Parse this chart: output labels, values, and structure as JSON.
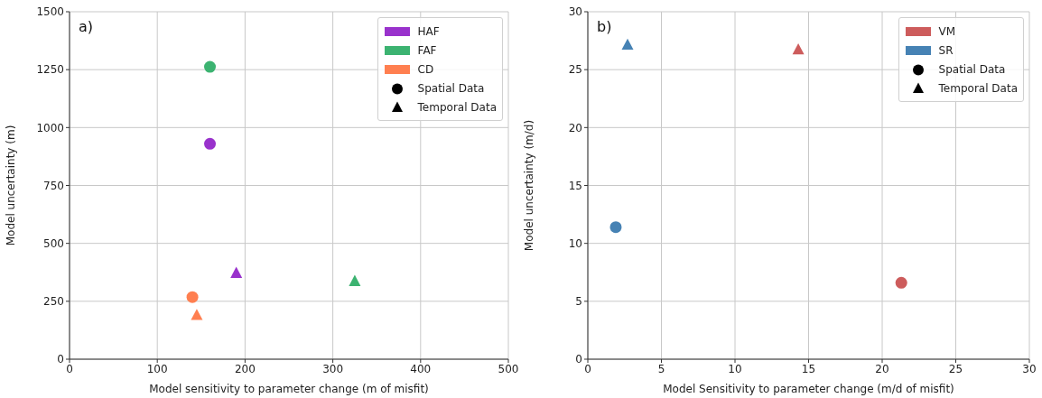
{
  "chart_data": [
    {
      "type": "scatter",
      "title": "a)",
      "xlabel": "Model sensitivity to parameter change (m of misfit)",
      "ylabel": "Model uncertainty (m)",
      "xlim": [
        0,
        500
      ],
      "xticks": [
        0,
        100,
        200,
        300,
        400,
        500
      ],
      "ylim": [
        0,
        1500
      ],
      "yticks": [
        0,
        250,
        500,
        750,
        1000,
        1250,
        1500
      ],
      "grid": true,
      "legend": "top right",
      "series": [
        {
          "name": "HAF",
          "color": "#9932cc",
          "x": [
            160,
            190
          ],
          "values": [
            930,
            370
          ],
          "marker": [
            "circle",
            "triangle"
          ]
        },
        {
          "name": "FAF",
          "color": "#3cb371",
          "x": [
            160,
            325
          ],
          "values": [
            1262,
            335
          ],
          "marker": [
            "circle",
            "triangle"
          ]
        },
        {
          "name": "CD",
          "color": "#ff7f50",
          "x": [
            140,
            145
          ],
          "values": [
            268,
            188
          ],
          "marker": [
            "circle",
            "triangle"
          ]
        },
        {
          "name": "Spatial Data",
          "color": "#000000",
          "marker": "circle"
        },
        {
          "name": "Temporal Data",
          "color": "#000000",
          "marker": "triangle"
        }
      ]
    },
    {
      "type": "scatter",
      "title": "b)",
      "xlabel": "Model Sensitivity to parameter change (m/d of misfit)",
      "ylabel": "Model uncertainty (m/d)",
      "xlim": [
        0,
        30
      ],
      "xticks": [
        0,
        5,
        10,
        15,
        20,
        25,
        30
      ],
      "ylim": [
        0,
        30
      ],
      "yticks": [
        0,
        5,
        10,
        15,
        20,
        25,
        30
      ],
      "grid": true,
      "legend": "top right",
      "series": [
        {
          "name": "VM",
          "color": "#cd5c5c",
          "x": [
            14.3,
            21.3
          ],
          "values": [
            26.7,
            6.6
          ],
          "marker": [
            "triangle",
            "circle"
          ]
        },
        {
          "name": "SR",
          "color": "#4682b4",
          "x": [
            2.7,
            1.9
          ],
          "values": [
            27.1,
            11.4
          ],
          "marker": [
            "triangle",
            "circle"
          ]
        },
        {
          "name": "Spatial Data",
          "color": "#000000",
          "marker": "circle"
        },
        {
          "name": "Temporal Data",
          "color": "#000000",
          "marker": "triangle"
        }
      ]
    }
  ]
}
